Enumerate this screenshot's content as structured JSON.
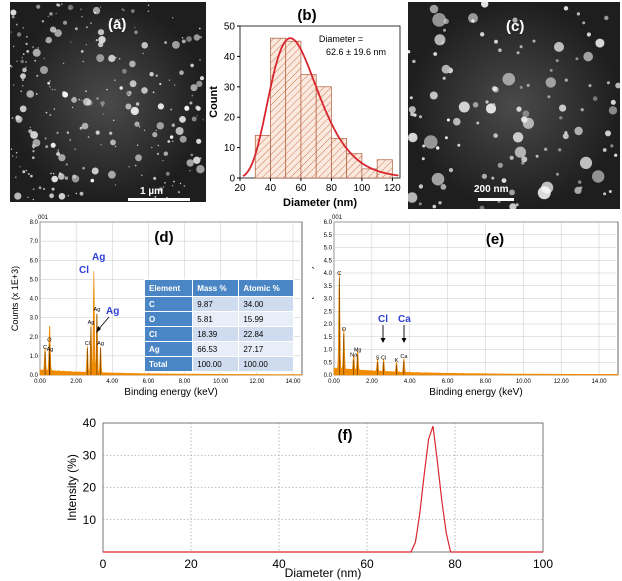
{
  "panels": {
    "a": {
      "label": "(a)",
      "scale": "1 µm"
    },
    "b": {
      "label": "(b)"
    },
    "c": {
      "label": "(c)",
      "scale": "200 nm"
    },
    "d": {
      "label": "(d)"
    },
    "e": {
      "label": "(e)"
    },
    "f": {
      "label": "(f)"
    }
  },
  "colors": {
    "orange": "#f08a00",
    "red": "#d9262e",
    "blue": "#2c3fd6",
    "hatch": "#c8784f"
  },
  "chart_data": [
    {
      "id": "b",
      "type": "bar",
      "title": "",
      "xlabel": "Diameter (nm)",
      "ylabel": "Count",
      "xlim": [
        20,
        125
      ],
      "ylim": [
        0,
        50
      ],
      "xticks": [
        20,
        40,
        60,
        80,
        100,
        120
      ],
      "yticks": [
        0,
        10,
        20,
        30,
        40,
        50
      ],
      "bin_edges": [
        30,
        40,
        50,
        60,
        70,
        80,
        90,
        100,
        110,
        120
      ],
      "values": [
        14,
        46,
        45,
        34,
        30,
        13,
        8,
        3,
        6
      ],
      "fit_peak_x": 53,
      "fit_peak_y": 46,
      "annotation": [
        "Diameter =",
        "62.6 ± 19.6 nm"
      ]
    },
    {
      "id": "d",
      "type": "line",
      "xlabel": "Binding energy (keV)",
      "ylabel": "Counts (x 1E+3)",
      "corner": "001",
      "xlim": [
        0,
        14.5
      ],
      "ylim": [
        0,
        8
      ],
      "xticks": [
        "0.00",
        "2.00",
        "4.00",
        "6.00",
        "8.00",
        "10.00",
        "12.00",
        "14.00"
      ],
      "yticks": [
        "0.0",
        "1.0",
        "2.0",
        "3.0",
        "4.0",
        "5.0",
        "6.0",
        "7.0",
        "8.0"
      ],
      "peaks": [
        {
          "x": 0.28,
          "y": 1.2,
          "label": "C"
        },
        {
          "x": 0.52,
          "y": 1.6,
          "label": "O"
        },
        {
          "x": 0.55,
          "y": 1.1,
          "label": "Ag"
        },
        {
          "x": 2.62,
          "y": 1.4,
          "label": "Cl"
        },
        {
          "x": 2.82,
          "y": 2.5,
          "label": "Ag"
        },
        {
          "x": 2.98,
          "y": 5.3,
          "label": ""
        },
        {
          "x": 3.15,
          "y": 3.2,
          "label": "Ag"
        },
        {
          "x": 3.35,
          "y": 1.4,
          "label": "Ag"
        }
      ],
      "big_labels": [
        "Ag",
        "Cl",
        "Ag"
      ],
      "table": {
        "headers": [
          "Element",
          "Mass %",
          "Atomic %"
        ],
        "rows": [
          [
            "C",
            "9.87",
            "34.00"
          ],
          [
            "O",
            "5.81",
            "15.99"
          ],
          [
            "Cl",
            "18.39",
            "22.84"
          ],
          [
            "Ag",
            "66.53",
            "27.17"
          ],
          [
            "Total",
            "100.00",
            "100.00"
          ]
        ]
      }
    },
    {
      "id": "e",
      "type": "line",
      "xlabel": "Binding energy (keV)",
      "ylabel": "Counts (x 1E+3)",
      "corner": "001",
      "xlim": [
        0,
        15
      ],
      "ylim": [
        0,
        6
      ],
      "xticks": [
        "0.00",
        "2.00",
        "4.00",
        "6.00",
        "8.00",
        "10.00",
        "12.00",
        "14.00"
      ],
      "yticks": [
        "0.0",
        "0.5",
        "1.0",
        "1.5",
        "2.0",
        "2.5",
        "3.0",
        "3.5",
        "4.0",
        "4.5",
        "5.0",
        "5.5",
        "6.0"
      ],
      "peaks": [
        {
          "x": 0.28,
          "y": 3.8,
          "label": "C"
        },
        {
          "x": 0.52,
          "y": 1.6,
          "label": "O"
        },
        {
          "x": 1.04,
          "y": 0.6,
          "label": "Na"
        },
        {
          "x": 1.25,
          "y": 0.8,
          "label": "Mg"
        },
        {
          "x": 2.3,
          "y": 0.5,
          "label": "S"
        },
        {
          "x": 2.62,
          "y": 0.5,
          "label": "Cl"
        },
        {
          "x": 3.3,
          "y": 0.4,
          "label": "K"
        },
        {
          "x": 3.69,
          "y": 0.55,
          "label": "Ca"
        }
      ],
      "big_labels": [
        "Cl",
        "Ca"
      ]
    },
    {
      "id": "f",
      "type": "line",
      "xlabel": "Diameter (nm)",
      "ylabel": "Intensity (%)",
      "xlim": [
        0,
        100
      ],
      "ylim": [
        0,
        40
      ],
      "xticks": [
        0,
        20,
        40,
        60,
        80,
        100
      ],
      "yticks": [
        10,
        20,
        30,
        40
      ],
      "x": [
        0,
        11,
        70,
        71,
        72,
        73,
        74,
        75,
        76,
        77,
        78,
        79,
        100
      ],
      "y": [
        0,
        0,
        0,
        3,
        12,
        24,
        35,
        39,
        28,
        16,
        6,
        0,
        0
      ]
    }
  ]
}
